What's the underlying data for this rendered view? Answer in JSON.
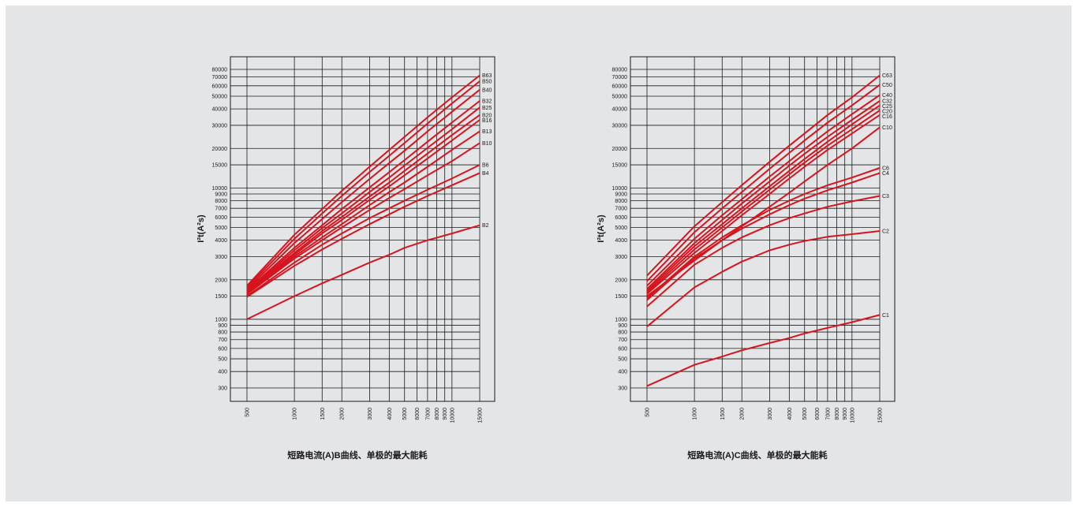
{
  "chart_data": [
    {
      "type": "line",
      "ylabel": "I²t(A²s)",
      "caption": "短路电流(A)B曲线、单极的最大能耗",
      "x_scale": "log",
      "y_scale": "log",
      "xlim": [
        500,
        15000
      ],
      "ylim": [
        300,
        80000
      ],
      "grid": true,
      "x_ticks": [
        500,
        1000,
        1500,
        2000,
        3000,
        4000,
        5000,
        6000,
        7000,
        8000,
        9000,
        10000,
        15000
      ],
      "y_ticks": [
        300,
        400,
        500,
        600,
        700,
        800,
        900,
        1000,
        1500,
        2000,
        3000,
        4000,
        5000,
        6000,
        7000,
        8000,
        9000,
        10000,
        15000,
        20000,
        30000,
        40000,
        50000,
        60000,
        70000,
        80000
      ],
      "color": "#d7141e",
      "series": [
        {
          "name": "B2",
          "x": [
            500,
            1000,
            1500,
            2000,
            3000,
            4000,
            5000,
            7000,
            10000,
            15000
          ],
          "values": [
            1000,
            1500,
            1880,
            2180,
            2700,
            3100,
            3500,
            4000,
            4500,
            5200
          ]
        },
        {
          "name": "B4",
          "x": [
            500,
            1000,
            1500,
            2000,
            3000,
            4000,
            5000,
            7000,
            10000,
            15000
          ],
          "values": [
            1480,
            2550,
            3400,
            4100,
            5300,
            6300,
            7200,
            8700,
            10500,
            13000
          ]
        },
        {
          "name": "B6",
          "x": [
            500,
            1000,
            1500,
            2000,
            3000,
            4000,
            5000,
            7000,
            10000,
            15000
          ],
          "values": [
            1500,
            2700,
            3700,
            4500,
            5900,
            7000,
            8000,
            9700,
            11800,
            15000
          ]
        },
        {
          "name": "B10",
          "x": [
            500,
            1000,
            1500,
            2000,
            3000,
            4000,
            5000,
            7000,
            10000,
            15000
          ],
          "values": [
            1550,
            2900,
            4000,
            5000,
            6800,
            8400,
            9800,
            12500,
            16000,
            22000
          ]
        },
        {
          "name": "B13",
          "x": [
            500,
            1000,
            1500,
            2000,
            3000,
            4000,
            5000,
            7000,
            10000,
            15000
          ],
          "values": [
            1580,
            3000,
            4200,
            5300,
            7400,
            9300,
            11000,
            14500,
            19500,
            27000
          ]
        },
        {
          "name": "B16",
          "x": [
            500,
            1000,
            1500,
            2000,
            3000,
            4000,
            5000,
            7000,
            10000,
            15000
          ],
          "values": [
            1600,
            3100,
            4500,
            5700,
            8100,
            10300,
            12500,
            16800,
            23000,
            33000
          ]
        },
        {
          "name": "B20",
          "x": [
            500,
            1000,
            1500,
            2000,
            3000,
            4000,
            5000,
            7000,
            10000,
            15000
          ],
          "values": [
            1620,
            3200,
            4700,
            6000,
            8600,
            11000,
            13500,
            18300,
            25300,
            36000
          ]
        },
        {
          "name": "B25",
          "x": [
            500,
            1000,
            1500,
            2000,
            3000,
            4000,
            5000,
            7000,
            10000,
            15000
          ],
          "values": [
            1640,
            3350,
            4950,
            6400,
            9300,
            12000,
            14800,
            20200,
            28000,
            41000
          ]
        },
        {
          "name": "B32",
          "x": [
            500,
            1000,
            1500,
            2000,
            3000,
            4000,
            5000,
            7000,
            10000,
            15000
          ],
          "values": [
            1660,
            3500,
            5200,
            6900,
            10100,
            13200,
            16300,
            22500,
            31500,
            46000
          ]
        },
        {
          "name": "B40",
          "x": [
            500,
            1000,
            1500,
            2000,
            3000,
            4000,
            5000,
            7000,
            10000,
            15000
          ],
          "values": [
            1700,
            3800,
            5800,
            7800,
            11700,
            15500,
            19200,
            27000,
            38000,
            56000
          ]
        },
        {
          "name": "B50",
          "x": [
            500,
            1000,
            1500,
            2000,
            3000,
            4000,
            5000,
            7000,
            10000,
            15000
          ],
          "values": [
            1750,
            4100,
            6400,
            8700,
            13200,
            17600,
            22000,
            31000,
            44000,
            65000
          ]
        },
        {
          "name": "B63",
          "x": [
            500,
            1000,
            1500,
            2000,
            3000,
            4000,
            5000,
            7000,
            10000,
            15000
          ],
          "values": [
            1800,
            4400,
            6900,
            9500,
            14500,
            19500,
            24500,
            34500,
            49000,
            72000
          ]
        }
      ]
    },
    {
      "type": "line",
      "ylabel": "I²t(A²s)",
      "caption": "短路电流(A)C曲线、单极的最大能耗",
      "x_scale": "log",
      "y_scale": "log",
      "xlim": [
        500,
        15000
      ],
      "ylim": [
        300,
        80000
      ],
      "grid": true,
      "x_ticks": [
        500,
        1000,
        1500,
        2000,
        3000,
        4000,
        5000,
        6000,
        7000,
        8000,
        9000,
        10000,
        15000
      ],
      "y_ticks": [
        300,
        400,
        500,
        600,
        700,
        800,
        900,
        1000,
        1500,
        2000,
        3000,
        4000,
        5000,
        6000,
        7000,
        8000,
        9000,
        10000,
        15000,
        20000,
        30000,
        40000,
        50000,
        60000,
        70000,
        80000
      ],
      "color": "#d7141e",
      "series": [
        {
          "name": "C1",
          "x": [
            500,
            1000,
            1500,
            2000,
            3000,
            4000,
            5000,
            7000,
            10000,
            15000
          ],
          "values": [
            310,
            450,
            520,
            580,
            660,
            720,
            780,
            860,
            950,
            1080
          ]
        },
        {
          "name": "C2",
          "x": [
            500,
            1000,
            1500,
            2000,
            3000,
            4000,
            5000,
            7000,
            10000,
            15000
          ],
          "values": [
            880,
            1750,
            2300,
            2750,
            3350,
            3700,
            3950,
            4250,
            4450,
            4700
          ]
        },
        {
          "name": "C3",
          "x": [
            500,
            1000,
            1500,
            2000,
            3000,
            4000,
            5000,
            7000,
            10000,
            15000
          ],
          "values": [
            1250,
            2600,
            3500,
            4200,
            5200,
            5900,
            6400,
            7200,
            7900,
            8700
          ]
        },
        {
          "name": "C4",
          "x": [
            500,
            1000,
            1500,
            2000,
            3000,
            4000,
            5000,
            7000,
            10000,
            15000
          ],
          "values": [
            1400,
            2900,
            4000,
            4900,
            6300,
            7400,
            8300,
            9600,
            11000,
            13000
          ]
        },
        {
          "name": "C6",
          "x": [
            500,
            1000,
            1500,
            2000,
            3000,
            4000,
            5000,
            7000,
            10000,
            15000
          ],
          "values": [
            1450,
            3000,
            4200,
            5200,
            6800,
            8000,
            9000,
            10500,
            12000,
            14200
          ]
        },
        {
          "name": "C10",
          "x": [
            500,
            1000,
            1500,
            2000,
            3000,
            4000,
            5000,
            7000,
            10000,
            15000
          ],
          "values": [
            1500,
            2800,
            4000,
            5100,
            7200,
            9200,
            11200,
            15000,
            20000,
            29000
          ]
        },
        {
          "name": "C16",
          "x": [
            500,
            1000,
            1500,
            2000,
            3000,
            4000,
            5000,
            7000,
            10000,
            15000
          ],
          "values": [
            1560,
            3200,
            4700,
            6200,
            9000,
            11800,
            14500,
            19500,
            26000,
            36000
          ]
        },
        {
          "name": "C20",
          "x": [
            500,
            1000,
            1500,
            2000,
            3000,
            4000,
            5000,
            7000,
            10000,
            15000
          ],
          "values": [
            1600,
            3400,
            5000,
            6600,
            9700,
            12700,
            15600,
            21000,
            28000,
            39000
          ]
        },
        {
          "name": "C25",
          "x": [
            500,
            1000,
            1500,
            2000,
            3000,
            4000,
            5000,
            7000,
            10000,
            15000
          ],
          "values": [
            1650,
            3600,
            5300,
            7000,
            10300,
            13500,
            16600,
            22500,
            30500,
            42500
          ]
        },
        {
          "name": "C32",
          "x": [
            500,
            1000,
            1500,
            2000,
            3000,
            4000,
            5000,
            7000,
            10000,
            15000
          ],
          "values": [
            1700,
            3800,
            5700,
            7600,
            11200,
            14800,
            18200,
            24500,
            33000,
            46000
          ]
        },
        {
          "name": "C40",
          "x": [
            500,
            1000,
            1500,
            2000,
            3000,
            4000,
            5000,
            7000,
            10000,
            15000
          ],
          "values": [
            1800,
            4100,
            6200,
            8200,
            12200,
            16000,
            19800,
            27000,
            36500,
            51000
          ]
        },
        {
          "name": "C50",
          "x": [
            500,
            1000,
            1500,
            2000,
            3000,
            4000,
            5000,
            7000,
            10000,
            15000
          ],
          "values": [
            1950,
            4600,
            7000,
            9300,
            14000,
            18500,
            23000,
            31500,
            42500,
            61000
          ]
        },
        {
          "name": "C63",
          "x": [
            500,
            1000,
            1500,
            2000,
            3000,
            4000,
            5000,
            7000,
            10000,
            15000
          ],
          "values": [
            2150,
            5100,
            7800,
            10500,
            15800,
            21000,
            26000,
            36000,
            49000,
            72000
          ]
        }
      ]
    }
  ]
}
